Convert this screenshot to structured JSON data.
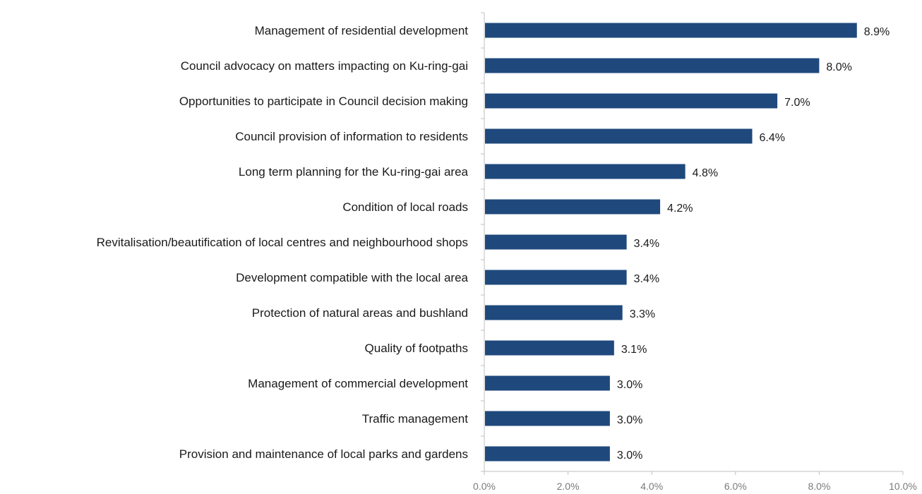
{
  "chart_data": {
    "type": "bar",
    "orientation": "horizontal",
    "categories": [
      "Management of residential development",
      "Council advocacy on matters impacting on Ku-ring-gai",
      "Opportunities to participate in Council decision making",
      "Council provision of information to residents",
      "Long term planning for the Ku-ring-gai area",
      "Condition of local roads",
      "Revitalisation/beautification of local centres and neighbourhood shops",
      "Development compatible with the local area",
      "Protection of natural areas and bushland",
      "Quality of footpaths",
      "Management of commercial development",
      "Traffic management",
      "Provision and maintenance of local parks and gardens"
    ],
    "values": [
      8.9,
      8.0,
      7.0,
      6.4,
      4.8,
      4.2,
      3.4,
      3.4,
      3.3,
      3.1,
      3.0,
      3.0,
      3.0
    ],
    "data_labels": [
      "8.9%",
      "8.0%",
      "7.0%",
      "6.4%",
      "4.8%",
      "4.2%",
      "3.4%",
      "3.4%",
      "3.3%",
      "3.1%",
      "3.0%",
      "3.0%",
      "3.0%"
    ],
    "xlim": [
      0,
      10
    ],
    "x_ticks": [
      0,
      2,
      4,
      6,
      8,
      10
    ],
    "x_tick_labels": [
      "0.0%",
      "2.0%",
      "4.0%",
      "6.0%",
      "8.0%",
      "10.0%"
    ],
    "title": "",
    "xlabel": "",
    "ylabel": "",
    "grid": false,
    "legend": "none",
    "colors": {
      "bar": "#1f497d",
      "axis": "#bfbfbf",
      "text": "#1a1a1a",
      "tick_text": "#7a7a7a"
    }
  }
}
